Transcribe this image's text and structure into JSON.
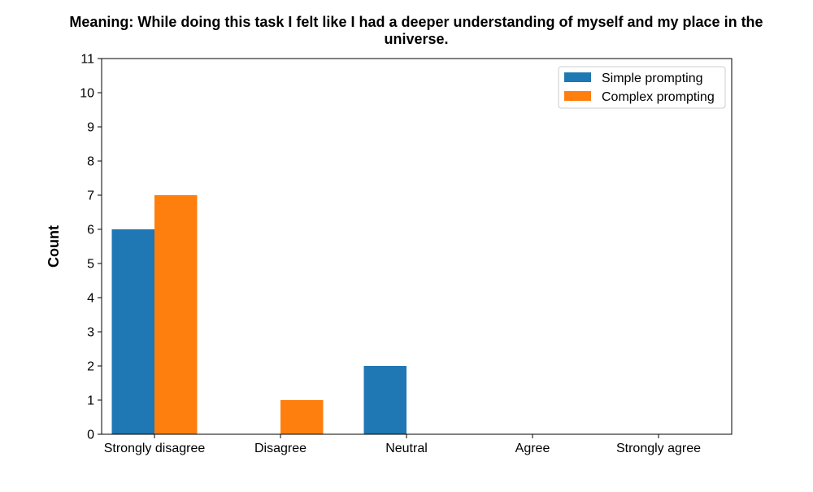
{
  "chart_data": {
    "type": "bar",
    "title": "Meaning: While doing this task I felt like I had a deeper understanding of myself and my place in the universe.",
    "title_lines": [
      "Meaning: While doing this task I felt like I had a deeper understanding of myself and my place in the",
      "universe."
    ],
    "xlabel": "",
    "ylabel": "Count",
    "categories": [
      "Strongly disagree",
      "Disagree",
      "Neutral",
      "Agree",
      "Strongly agree"
    ],
    "series": [
      {
        "name": "Simple prompting",
        "values": [
          6,
          0,
          2,
          0,
          0
        ],
        "color": "#1f77b4"
      },
      {
        "name": "Complex prompting",
        "values": [
          7,
          1,
          0,
          0,
          0
        ],
        "color": "#ff7f0e"
      }
    ],
    "ylim": [
      0,
      11
    ],
    "yticks": [
      "0",
      "1",
      "2",
      "3",
      "4",
      "5",
      "6",
      "7",
      "8",
      "9",
      "10",
      "11"
    ],
    "grid": false,
    "legend_position": "top-right"
  }
}
